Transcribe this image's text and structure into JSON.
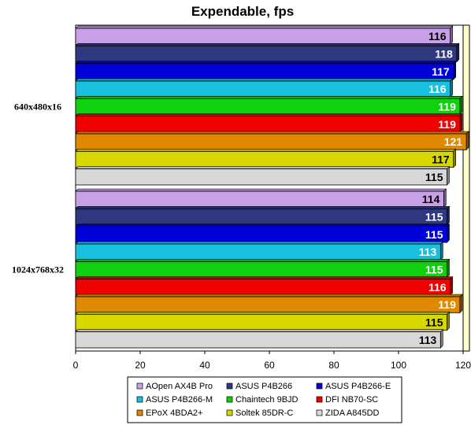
{
  "chart_data": {
    "type": "bar",
    "orientation": "horizontal",
    "title": "Expendable, fps",
    "xlabel": "",
    "ylabel": "",
    "xlim": [
      0,
      120
    ],
    "xticks": [
      "0",
      "20",
      "40",
      "60",
      "80",
      "100",
      "120"
    ],
    "grid": false,
    "legend_position": "bottom",
    "categories": [
      "640x480x16",
      "1024x768x32"
    ],
    "series": [
      {
        "name": "AOpen AX4B Pro",
        "color": "#c8a0e8",
        "values": [
          116,
          114
        ]
      },
      {
        "name": "ASUS P4B266",
        "color": "#303880",
        "values": [
          118,
          115
        ]
      },
      {
        "name": "ASUS P4B266-E",
        "color": "#0000d8",
        "values": [
          117,
          115
        ]
      },
      {
        "name": "ASUS P4B266-M",
        "color": "#18c0e0",
        "values": [
          116,
          113
        ]
      },
      {
        "name": "Chaintech 9BJD",
        "color": "#10d010",
        "values": [
          119,
          115
        ]
      },
      {
        "name": "DFI NB70-SC",
        "color": "#f00000",
        "values": [
          119,
          116
        ]
      },
      {
        "name": "EPoX 4BDA2+",
        "color": "#e08800",
        "values": [
          121,
          119
        ]
      },
      {
        "name": "Soltek 85DR-C",
        "color": "#d8d800",
        "values": [
          117,
          115
        ]
      },
      {
        "name": "ZIDA A845DD",
        "color": "#d8d8d8",
        "values": [
          115,
          113
        ]
      }
    ]
  }
}
